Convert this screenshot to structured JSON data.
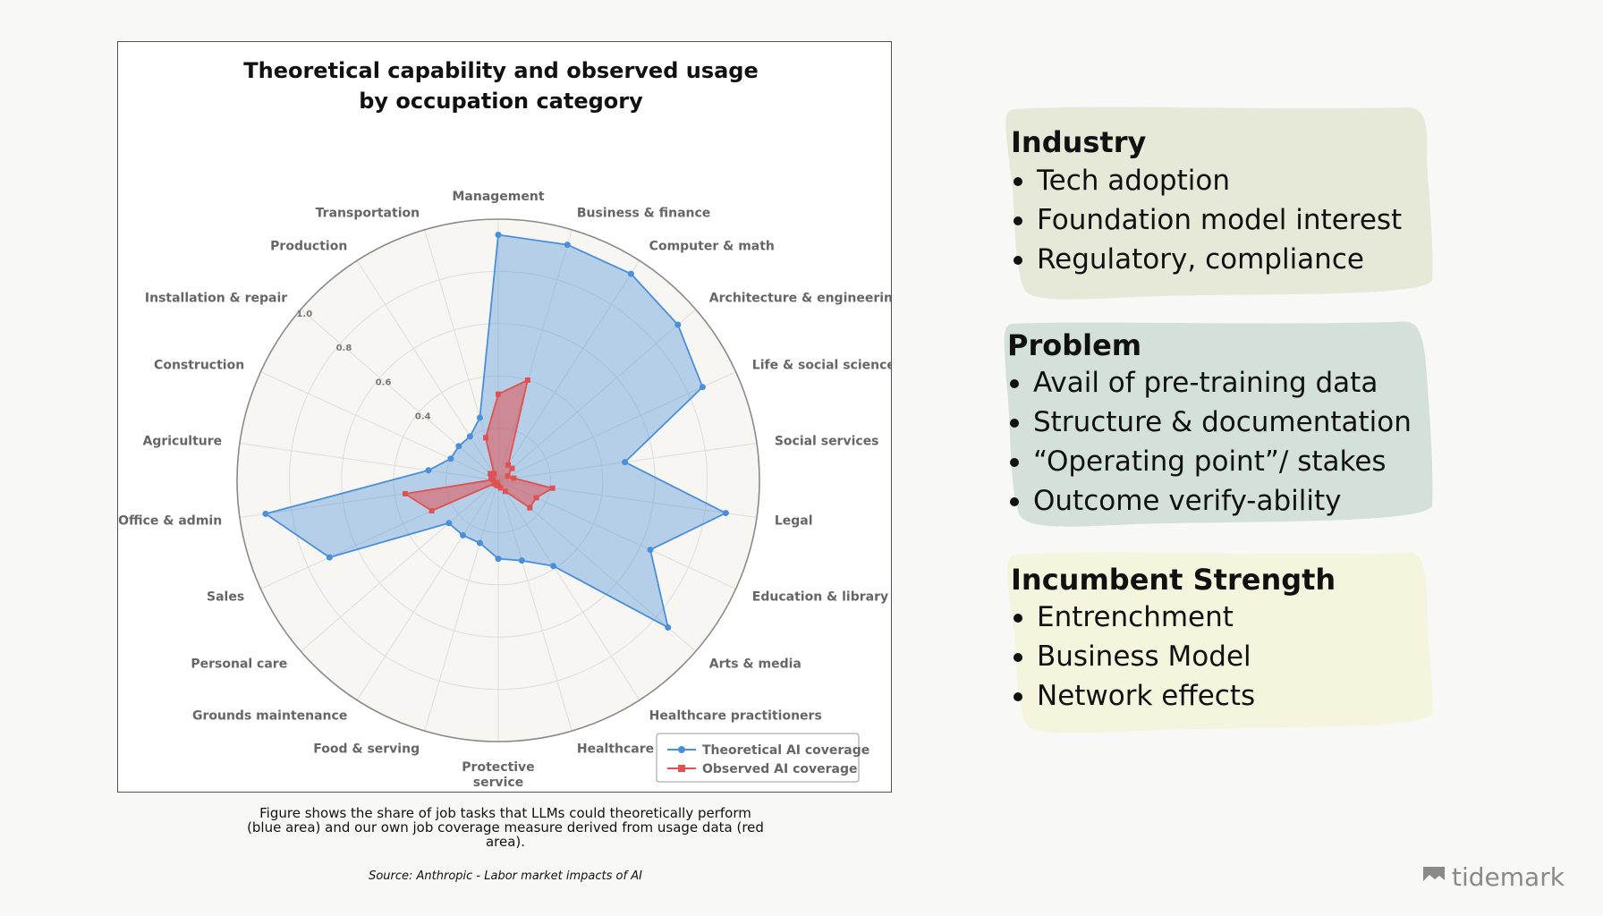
{
  "chart_data": {
    "type": "radar",
    "title_lines": [
      "Theoretical capability and observed usage",
      "by occupation category"
    ],
    "categories": [
      "Management",
      "Business & finance",
      "Computer & math",
      "Architecture & engineering",
      "Life & social sciences",
      "Social services",
      "Legal",
      "Education & library",
      "Arts & media",
      "Healthcare practitioners",
      "Healthcare support",
      "Protective service",
      "Food & serving",
      "Grounds maintenance",
      "Personal care",
      "Sales",
      "Office & admin",
      "Agriculture",
      "Construction",
      "Installation & repair",
      "Production",
      "Transportation"
    ],
    "radial_ticks": [
      "0.4",
      "0.6",
      "0.8",
      "1.0"
    ],
    "rlim": [
      0,
      1.0
    ],
    "grid": true,
    "legend_position": "bottom-right",
    "series": [
      {
        "name": "Theoretical AI coverage",
        "color": "#4a90d9",
        "values": [
          0.94,
          0.94,
          0.94,
          0.91,
          0.86,
          0.49,
          0.88,
          0.64,
          0.86,
          0.39,
          0.32,
          0.3,
          0.25,
          0.25,
          0.25,
          0.71,
          0.9,
          0.27,
          0.2,
          0.2,
          0.2,
          0.25
        ]
      },
      {
        "name": "Observed AI coverage",
        "color": "#e05252",
        "values": [
          0.33,
          0.4,
          0.07,
          0.07,
          0.04,
          0.06,
          0.21,
          0.16,
          0.16,
          0.05,
          0.03,
          0.02,
          0.02,
          0.01,
          0.02,
          0.28,
          0.36,
          0.02,
          0.03,
          0.04,
          0.03,
          0.17
        ]
      }
    ]
  },
  "caption": "Figure shows the share of job tasks that LLMs could theoretically perform (blue area) and our own job coverage measure derived from usage data (red area).",
  "source": "Source: Anthropic - Labor market impacts of AI",
  "cards": [
    {
      "title": "Industry",
      "color": "#e6e9d8",
      "items": [
        "Tech adoption",
        "Foundation model interest",
        "Regulatory, compliance"
      ]
    },
    {
      "title": "Problem",
      "color": "#d3e1da",
      "items": [
        "Avail of pre-training data",
        "Structure & documentation",
        "“Operating point”/ stakes",
        "Outcome verify-ability"
      ]
    },
    {
      "title": "Incumbent Strength",
      "color": "#f5f4dc",
      "items": [
        "Entrenchment",
        "Business Model",
        "Network effects"
      ]
    }
  ],
  "logo": {
    "text": "tidemark",
    "icon": "tidemark-logo-icon"
  }
}
